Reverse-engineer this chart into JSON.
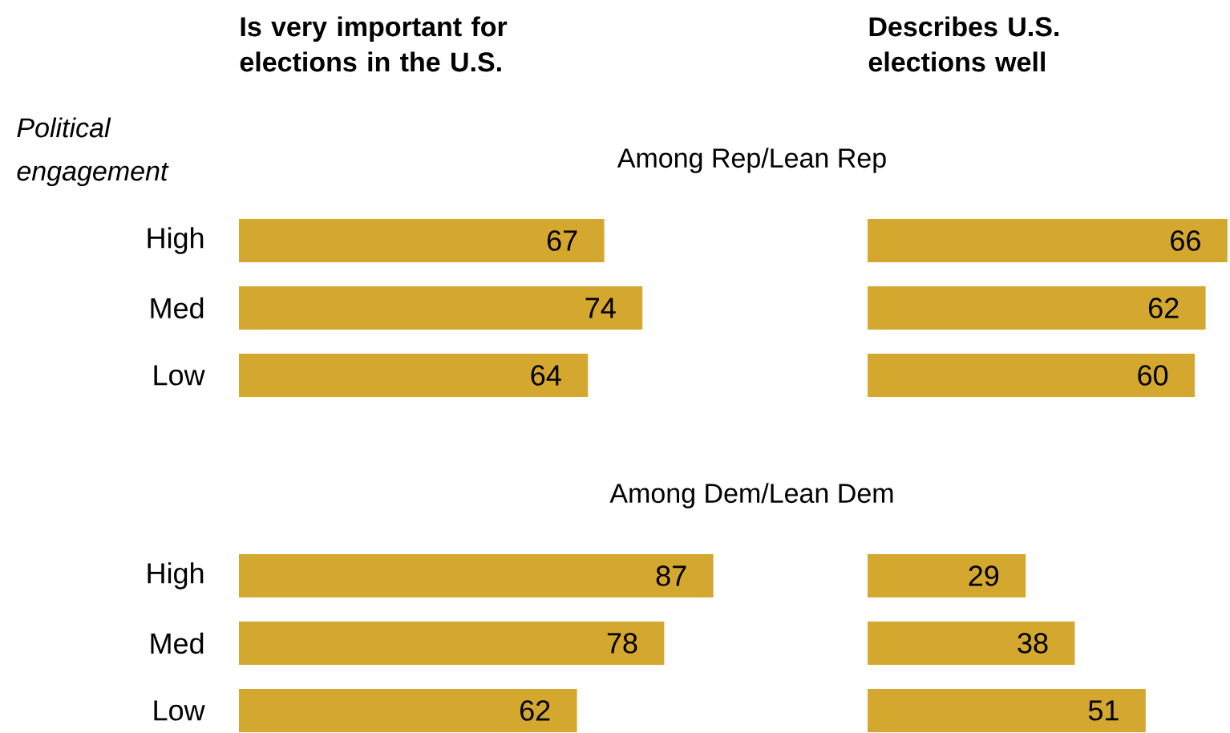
{
  "chart_data": [
    {
      "type": "bar",
      "orientation": "horizontal",
      "title": "Is very important for elections in the U.S.",
      "subtitle": "Among Rep/Lean Rep",
      "ylabel": "Political engagement",
      "categories": [
        "High",
        "Med",
        "Low"
      ],
      "values": [
        67,
        74,
        64
      ],
      "color": "#d4a72f",
      "data_labels": true
    },
    {
      "type": "bar",
      "orientation": "horizontal",
      "title": "Describes U.S. elections well",
      "categories": [
        null,
        null,
        null
      ],
      "values": [
        66,
        62,
        60
      ],
      "color": "#d4a72f",
      "data_labels": true
    },
    {
      "type": "bar",
      "orientation": "horizontal",
      "subtitle": "Among Dem/Lean Dem",
      "categories": [
        "High",
        "Med",
        "Low"
      ],
      "values": [
        87,
        78,
        62
      ],
      "color": "#d4a72f",
      "data_labels": true
    },
    {
      "type": "bar",
      "orientation": "horizontal",
      "categories": [
        null,
        null,
        null
      ],
      "values": [
        29,
        38,
        51
      ],
      "color": "#d4a72f",
      "data_labels": true
    }
  ]
}
